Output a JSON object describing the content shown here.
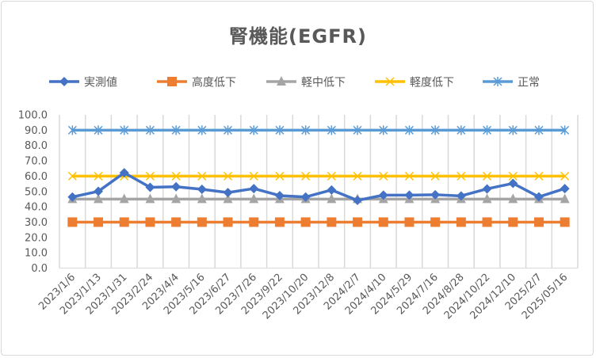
{
  "chart_data": {
    "type": "line",
    "title": "腎機能(EGFR)",
    "xlabel": "",
    "ylabel": "",
    "ylim": [
      0,
      100
    ],
    "yticks": [
      "0.0",
      "10.0",
      "20.0",
      "30.0",
      "40.0",
      "50.0",
      "60.0",
      "70.0",
      "80.0",
      "90.0",
      "100.0"
    ],
    "grid": "vertical",
    "legend_position": "top",
    "categories": [
      "2023/1/6",
      "2023/1/13",
      "2023/1/31",
      "2023/2/24",
      "2023/4/4",
      "2023/5/16",
      "2023/6/27",
      "2023/7/26",
      "2023/9/22",
      "2023/10/20",
      "2023/12/8",
      "2024/2/7",
      "2024/4/10",
      "2024/5/29",
      "2024/7/16",
      "2024/8/28",
      "2024/10/22",
      "2024/12/10",
      "2025/2/7",
      "2025/05/16"
    ],
    "series": [
      {
        "name": "実測値",
        "color": "#4472c4",
        "marker": "diamond",
        "values": [
          46.4,
          50.1,
          62.2,
          52.7,
          53.1,
          51.4,
          49.3,
          51.9,
          47.3,
          46.4,
          51.0,
          44.2,
          47.6,
          47.6,
          47.9,
          47.1,
          51.7,
          55.3,
          46.5,
          51.9
        ]
      },
      {
        "name": "高度低下",
        "color": "#ed7d31",
        "marker": "square",
        "values": [
          30,
          30,
          30,
          30,
          30,
          30,
          30,
          30,
          30,
          30,
          30,
          30,
          30,
          30,
          30,
          30,
          30,
          30,
          30,
          30
        ]
      },
      {
        "name": "軽中低下",
        "color": "#a5a5a5",
        "marker": "triangle",
        "values": [
          45,
          45,
          45,
          45,
          45,
          45,
          45,
          45,
          45,
          45,
          45,
          45,
          45,
          45,
          45,
          45,
          45,
          45,
          45,
          45
        ]
      },
      {
        "name": "軽度低下",
        "color": "#ffc000",
        "marker": "x",
        "values": [
          60,
          60,
          60,
          60,
          60,
          60,
          60,
          60,
          60,
          60,
          60,
          60,
          60,
          60,
          60,
          60,
          60,
          60,
          60,
          60
        ]
      },
      {
        "name": "正常",
        "color": "#5b9bd5",
        "marker": "star",
        "values": [
          90,
          90,
          90,
          90,
          90,
          90,
          90,
          90,
          90,
          90,
          90,
          90,
          90,
          90,
          90,
          90,
          90,
          90,
          90,
          90
        ]
      }
    ]
  }
}
